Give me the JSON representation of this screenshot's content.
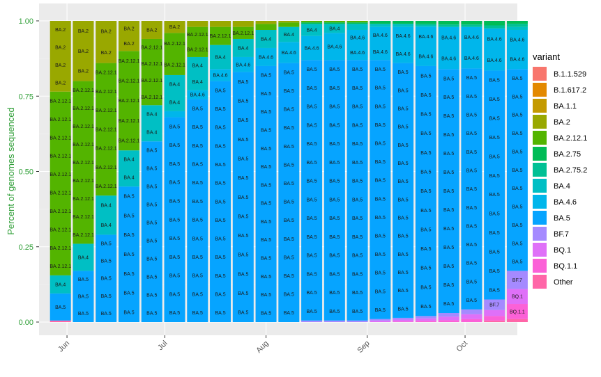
{
  "chart_data": {
    "type": "bar",
    "stacked": true,
    "ylabel": "Percent of genomes sequenced",
    "ylim": [
      0,
      1
    ],
    "yticks": [
      "0.00",
      "0.25",
      "0.50",
      "0.75",
      "1.00"
    ],
    "xticks": [
      "Jun",
      "Jul",
      "Aug",
      "Sep",
      "Oct"
    ],
    "legend": {
      "title": "variant",
      "position": "right",
      "entries": [
        {
          "name": "B.1.1.529",
          "color": "#F8766D"
        },
        {
          "name": "B.1.617.2",
          "color": "#E38900"
        },
        {
          "name": "BA.1.1",
          "color": "#C49A00"
        },
        {
          "name": "BA.2",
          "color": "#99A800"
        },
        {
          "name": "BA.2.12.1",
          "color": "#53B400"
        },
        {
          "name": "BA.2.75",
          "color": "#00BC56"
        },
        {
          "name": "BA.2.75.2",
          "color": "#00C094"
        },
        {
          "name": "BA.4",
          "color": "#00BFC4"
        },
        {
          "name": "BA.4.6",
          "color": "#00B6EB"
        },
        {
          "name": "BA.5",
          "color": "#06A4FF"
        },
        {
          "name": "BF.7",
          "color": "#A58AFF"
        },
        {
          "name": "BQ.1",
          "color": "#DF70F8"
        },
        {
          "name": "BQ.1.1",
          "color": "#FB61D7"
        },
        {
          "name": "Other",
          "color": "#FF66A8"
        }
      ]
    },
    "stack_order": [
      "Other",
      "BQ.1.1",
      "BQ.1",
      "BF.7",
      "BA.5",
      "BA.4.6",
      "BA.4",
      "BA.2.75.2",
      "BA.2.75",
      "BA.2.12.1",
      "BA.2",
      "BA.1.1",
      "B.1.617.2",
      "B.1.1.529"
    ],
    "bars": [
      {
        "x": "2022-05-30",
        "values": {
          "Other": 0.005,
          "BA.5": 0.09,
          "BA.4": 0.06,
          "BA.2.12.1": 0.61,
          "BA.2": 0.235
        }
      },
      {
        "x": "2022-06-06",
        "values": {
          "BA.5": 0.17,
          "BA.4": 0.09,
          "BA.2.12.1": 0.54,
          "BA.2": 0.2
        }
      },
      {
        "x": "2022-06-13",
        "values": {
          "BA.5": 0.29,
          "BA.4": 0.13,
          "BA.2.12.1": 0.44,
          "BA.2": 0.14
        }
      },
      {
        "x": "2022-06-20",
        "values": {
          "BA.5": 0.45,
          "BA.4": 0.12,
          "BA.2.12.1": 0.33,
          "BA.2": 0.1
        }
      },
      {
        "x": "2022-06-27",
        "values": {
          "BA.5": 0.6,
          "BA.4": 0.12,
          "BA.2.12.1": 0.22,
          "BA.2": 0.06
        }
      },
      {
        "x": "2022-07-04",
        "values": {
          "BA.5": 0.68,
          "BA.4.6": 0.02,
          "BA.4": 0.12,
          "BA.2.12.1": 0.14,
          "BA.2": 0.04
        }
      },
      {
        "x": "2022-07-11",
        "values": {
          "BA.5": 0.74,
          "BA.4.6": 0.03,
          "BA.4": 0.11,
          "BA.2.12.1": 0.1,
          "BA.2": 0.02
        }
      },
      {
        "x": "2022-07-18",
        "values": {
          "BA.5": 0.8,
          "BA.4.6": 0.04,
          "BA.4": 0.08,
          "BA.2.12.1": 0.06,
          "BA.2": 0.02
        }
      },
      {
        "x": "2022-07-25",
        "values": {
          "BA.5": 0.83,
          "BA.4.6": 0.05,
          "BA.4": 0.06,
          "BA.2.12.1": 0.04,
          "BA.2": 0.02
        }
      },
      {
        "x": "2022-08-01",
        "values": {
          "BA.5": 0.85,
          "BA.4.6": 0.06,
          "BA.4": 0.06,
          "BA.2.12.1": 0.02,
          "BA.2": 0.01
        }
      },
      {
        "x": "2022-08-08",
        "values": {
          "BA.5": 0.86,
          "BA.4.6": 0.07,
          "BA.4": 0.05,
          "BA.2.12.1": 0.015,
          "BA.2": 0.005
        }
      },
      {
        "x": "2022-08-15",
        "values": {
          "BF.7": 0.005,
          "BA.5": 0.865,
          "BA.4.6": 0.08,
          "BA.4": 0.04,
          "BA.2.75": 0.005,
          "BA.2.12.1": 0.005
        }
      },
      {
        "x": "2022-08-22",
        "values": {
          "BF.7": 0.005,
          "BA.5": 0.865,
          "BA.4.6": 0.09,
          "BA.4": 0.03,
          "BA.2.75": 0.005,
          "BA.2.12.1": 0.005
        }
      },
      {
        "x": "2022-08-29",
        "values": {
          "BF.7": 0.005,
          "BA.5": 0.865,
          "BA.4.6": 0.1,
          "BA.4": 0.02,
          "BA.2.75": 0.005,
          "BA.2.12.1": 0.005
        }
      },
      {
        "x": "2022-09-05",
        "values": {
          "BQ.1": 0.005,
          "BF.7": 0.005,
          "BA.5": 0.86,
          "BA.4.6": 0.11,
          "BA.4": 0.01,
          "BA.2.75": 0.01
        }
      },
      {
        "x": "2022-09-12",
        "values": {
          "BQ.1.1": 0.002,
          "BQ.1": 0.006,
          "BF.7": 0.006,
          "BA.5": 0.846,
          "BA.4.6": 0.12,
          "BA.4": 0.01,
          "BA.2.75": 0.01
        }
      },
      {
        "x": "2022-09-19",
        "values": {
          "BQ.1.1": 0.004,
          "BQ.1": 0.008,
          "BF.7": 0.008,
          "BA.5": 0.83,
          "BA.4.6": 0.13,
          "BA.4": 0.005,
          "BA.2.75.2": 0.005,
          "BA.2.75": 0.01
        }
      },
      {
        "x": "2022-09-26",
        "values": {
          "BQ.1.1": 0.006,
          "BQ.1": 0.012,
          "BF.7": 0.012,
          "BA.5": 0.81,
          "BA.4.6": 0.14,
          "BA.2.75.2": 0.008,
          "BA.2.75": 0.012
        }
      },
      {
        "x": "2022-10-03",
        "values": {
          "BQ.1.1": 0.01,
          "BQ.1": 0.016,
          "BF.7": 0.016,
          "BA.5": 0.8,
          "BA.4.6": 0.138,
          "BA.2.75.2": 0.008,
          "BA.2.75": 0.012
        }
      },
      {
        "x": "2022-10-10",
        "values": {
          "Other": 0.005,
          "BQ.1.1": 0.015,
          "BQ.1": 0.02,
          "BF.7": 0.035,
          "BA.5": 0.76,
          "BA.4.6": 0.14,
          "BA.2.75.2": 0.01,
          "BA.2.75": 0.015
        }
      },
      {
        "x": "2022-10-17",
        "values": {
          "Other": 0.01,
          "BQ.1.1": 0.05,
          "BQ.1": 0.05,
          "BF.7": 0.06,
          "BA.5": 0.67,
          "BA.4.6": 0.13,
          "BA.4": 0.01,
          "BA.2.75.2": 0.01,
          "BA.2.75": 0.01
        }
      }
    ]
  }
}
